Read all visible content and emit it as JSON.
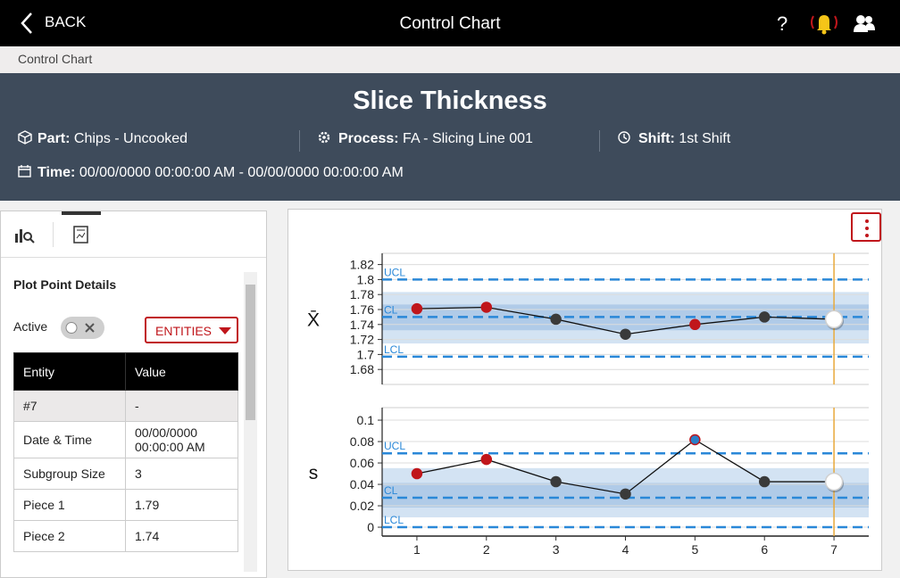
{
  "topbar": {
    "back": "BACK",
    "title": "Control Chart",
    "help": "?"
  },
  "breadcrumb": "Control Chart",
  "header": {
    "title": "Slice Thickness",
    "part_label": "Part:",
    "part": "Chips - Uncooked",
    "process_label": "Process:",
    "process": "FA - Slicing Line 001",
    "shift_label": "Shift:",
    "shift": "1st Shift",
    "time_label": "Time:",
    "time": "00/00/0000 00:00:00 AM - 00/00/0000 00:00:00 AM"
  },
  "details": {
    "title": "Plot Point Details",
    "active_label": "Active",
    "entities_button": "ENTITIES",
    "table": {
      "columns": [
        "Entity",
        "Value"
      ],
      "rows": [
        [
          "#7",
          "-"
        ],
        [
          "Date & Time",
          "00/00/0000 00:00:00 AM"
        ],
        [
          "Subgroup Size",
          "3"
        ],
        [
          "Piece 1",
          "1.79"
        ],
        [
          "Piece 2",
          "1.74"
        ]
      ]
    }
  },
  "chart_data": [
    {
      "type": "line",
      "ylabel": "X̄",
      "x": [
        1,
        2,
        3,
        4,
        5,
        6,
        7
      ],
      "xlim": [
        0.5,
        7.5
      ],
      "ylim": [
        1.66,
        1.835
      ],
      "yticks": [
        1.82,
        1.8,
        1.78,
        1.76,
        1.74,
        1.72,
        1.7,
        1.68
      ],
      "grid": true,
      "series": [
        {
          "color": "#111111",
          "values": [
            1.761,
            1.763,
            1.747,
            1.727,
            1.74,
            1.75,
            1.747
          ],
          "point_colors": [
            "#c0161b",
            "#c0161b",
            "#3a3a3a",
            "#3a3a3a",
            "#c0161b",
            "#3a3a3a",
            "#ffffff"
          ],
          "point_edges": [
            "#c0161b",
            "#c0161b",
            "#3a3a3a",
            "#3a3a3a",
            "#c0161b",
            "#3a3a3a",
            "#d0d0d0"
          ]
        }
      ],
      "limits": [
        {
          "label": "UCL",
          "value": 1.8
        },
        {
          "label": "CL",
          "value": 1.75
        },
        {
          "label": "LCL",
          "value": 1.697
        }
      ],
      "limit_color": "#2a88d8",
      "zone_colors": [
        "#d3e3f3",
        "#b0cbe8"
      ],
      "selection_color": "#e8a93a"
    },
    {
      "type": "line",
      "ylabel": "s",
      "x": [
        1,
        2,
        3,
        4,
        5,
        6,
        7
      ],
      "xlim": [
        0.5,
        7.5
      ],
      "ylim": [
        -0.0083,
        0.1117
      ],
      "yticks": [
        0.1,
        0.08,
        0.06,
        0.04,
        0.02,
        0
      ],
      "xticks": [
        1,
        2,
        3,
        4,
        5,
        6,
        7
      ],
      "grid": true,
      "series": [
        {
          "color": "#111111",
          "values": [
            0.05,
            0.0633,
            0.0425,
            0.031,
            0.0817,
            0.0425,
            0.0425
          ],
          "point_colors": [
            "#c0161b",
            "#c0161b",
            "#3a3a3a",
            "#3a3a3a",
            "#2a7fc9",
            "#3a3a3a",
            "#ffffff"
          ],
          "point_edges": [
            "#c0161b",
            "#c0161b",
            "#3a3a3a",
            "#3a3a3a",
            "#c0161b",
            "#3a3a3a",
            "#d0d0d0"
          ]
        }
      ],
      "limits": [
        {
          "label": "UCL",
          "value": 0.069
        },
        {
          "label": "CL",
          "value": 0.0275
        },
        {
          "label": "LCL",
          "value": 0
        }
      ],
      "limit_color": "#2a88d8",
      "zone_colors": [
        "#d3e3f3",
        "#b0cbe8"
      ],
      "selection_color": "#e8a93a"
    }
  ]
}
